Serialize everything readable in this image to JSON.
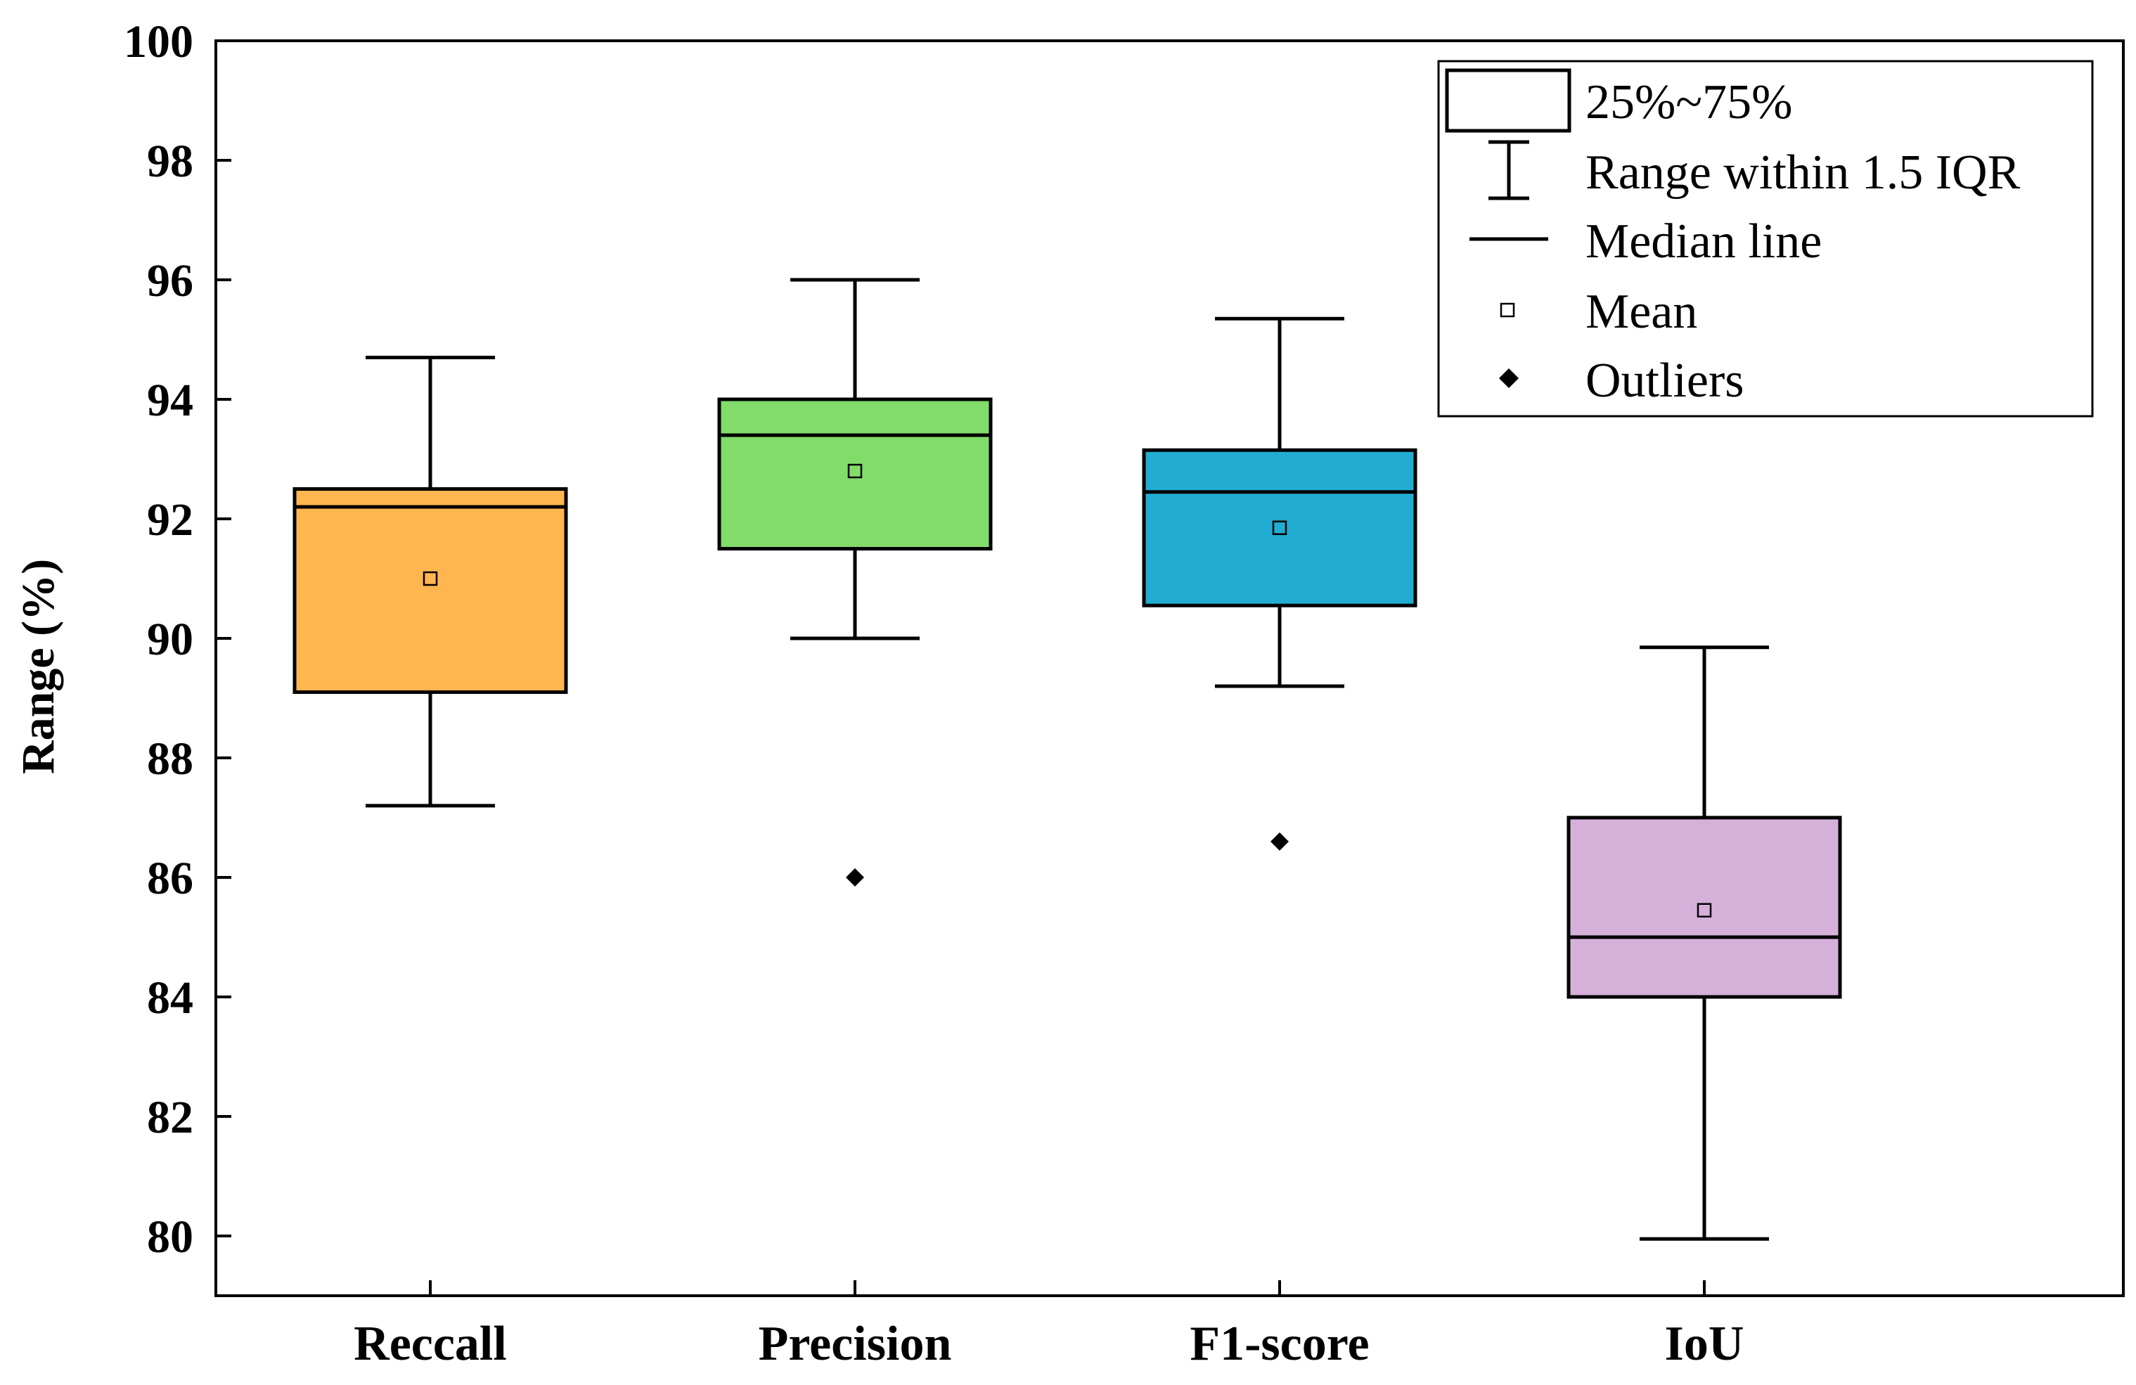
{
  "chart_data": {
    "type": "box",
    "title": "",
    "xlabel": "",
    "ylabel": "Range (%)",
    "ylim": [
      79,
      100
    ],
    "yticks": [
      "80",
      "82",
      "84",
      "86",
      "88",
      "90",
      "92",
      "94",
      "96",
      "98",
      "100"
    ],
    "categories": [
      "Reccall",
      "Precision",
      "F1-score",
      "IoU"
    ],
    "boxes": [
      {
        "name": "Reccall",
        "q1": 89.1,
        "median": 92.2,
        "q3": 92.5,
        "whisker_low": 87.2,
        "whisker_high": 94.7,
        "mean": 91.0,
        "outliers": [],
        "color": "#FFB650"
      },
      {
        "name": "Precision",
        "q1": 91.5,
        "median": 93.4,
        "q3": 94.0,
        "whisker_low": 90.0,
        "whisker_high": 96.0,
        "mean": 92.8,
        "outliers": [
          86.0
        ],
        "color": "#82DC6A"
      },
      {
        "name": "F1-score",
        "q1": 90.55,
        "median": 92.45,
        "q3": 93.15,
        "whisker_low": 89.2,
        "whisker_high": 95.35,
        "mean": 91.85,
        "outliers": [
          86.6
        ],
        "color": "#22ACD2"
      },
      {
        "name": "IoU",
        "q1": 84.0,
        "median": 85.0,
        "q3": 87.0,
        "whisker_low": 79.95,
        "whisker_high": 89.85,
        "mean": 85.45,
        "outliers": [],
        "color": "#D5B1DA"
      }
    ],
    "legend": {
      "position": "top-right",
      "items": [
        "25%~75%",
        "Range within 1.5 IQR",
        "Median line",
        "Mean",
        "Outliers"
      ]
    }
  }
}
